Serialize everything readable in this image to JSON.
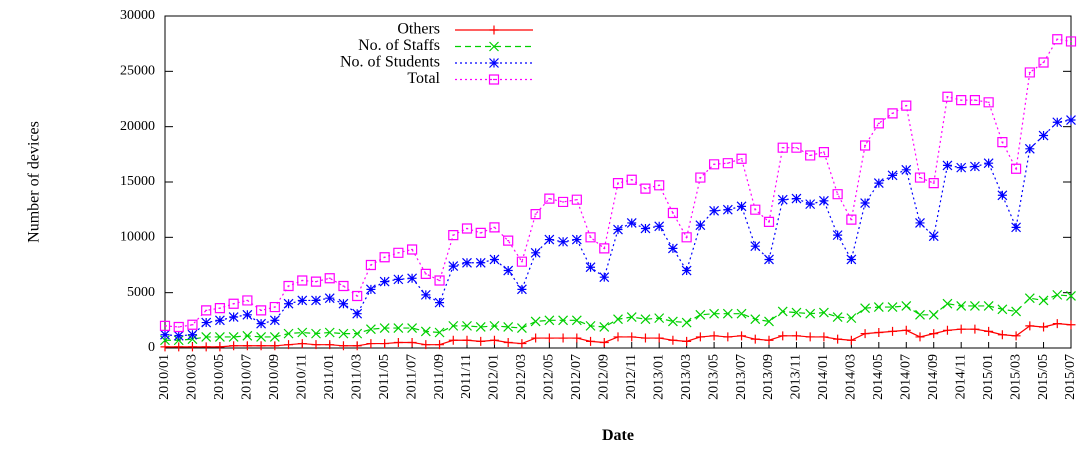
{
  "chart_data": {
    "type": "line",
    "x_label": "Date",
    "y_label": "Number of devices",
    "categories": [
      "2010/01",
      null,
      "2010/03",
      null,
      "2010/05",
      null,
      "2010/07",
      null,
      "2010/09",
      null,
      "2010/11",
      null,
      "2011/01",
      null,
      "2011/03",
      null,
      "2011/05",
      null,
      "2011/07",
      null,
      "2011/09",
      null,
      "2011/11",
      null,
      "2012/01",
      null,
      "2012/03",
      null,
      "2012/05",
      null,
      "2012/07",
      null,
      "2012/09",
      null,
      "2012/11",
      null,
      "2013/01",
      null,
      "2013/03",
      null,
      "2013/05",
      null,
      "2013/07",
      null,
      "2013/09",
      null,
      "2013/11",
      null,
      "2014/01",
      null,
      "2014/03",
      null,
      "2014/05",
      null,
      "2014/07",
      null,
      "2014/09",
      null,
      "2014/11",
      null,
      "2015/01",
      null,
      "2015/03",
      null,
      "2015/05",
      null,
      "2015/07"
    ],
    "ylim": [
      0,
      30000
    ],
    "yticks": [
      0,
      5000,
      10000,
      15000,
      20000,
      25000,
      30000
    ],
    "legend": "top-left",
    "series": [
      {
        "name": "Others",
        "color": "#ff0000",
        "line_style": "solid",
        "marker": "plus",
        "values": [
          100,
          100,
          100,
          100,
          100,
          200,
          200,
          200,
          200,
          300,
          400,
          300,
          300,
          200,
          200,
          400,
          400,
          500,
          500,
          300,
          300,
          700,
          700,
          600,
          700,
          500,
          400,
          900,
          900,
          900,
          900,
          600,
          500,
          1000,
          1000,
          900,
          900,
          700,
          600,
          1000,
          1100,
          1000,
          1100,
          800,
          700,
          1100,
          1100,
          1000,
          1000,
          800,
          700,
          1300,
          1400,
          1500,
          1600,
          1000,
          1300,
          1600,
          1700,
          1700,
          1500,
          1200,
          1100,
          2000,
          1900,
          2200,
          2100
        ]
      },
      {
        "name": "No. of Staffs",
        "color": "#00d000",
        "line_style": "dashed",
        "marker": "cross",
        "values": [
          700,
          700,
          800,
          1000,
          1000,
          1000,
          1100,
          1000,
          1000,
          1300,
          1400,
          1300,
          1400,
          1300,
          1300,
          1700,
          1800,
          1800,
          1800,
          1500,
          1400,
          2000,
          2000,
          1900,
          2000,
          1900,
          1800,
          2400,
          2500,
          2500,
          2500,
          2000,
          1900,
          2600,
          2800,
          2600,
          2700,
          2400,
          2300,
          3000,
          3100,
          3100,
          3100,
          2600,
          2400,
          3300,
          3200,
          3100,
          3200,
          2800,
          2700,
          3600,
          3700,
          3700,
          3800,
          3000,
          3000,
          4000,
          3800,
          3800,
          3800,
          3500,
          3300,
          4500,
          4300,
          4800,
          4700
        ]
      },
      {
        "name": "No. of Students",
        "color": "#0000ff",
        "line_style": "dotted",
        "marker": "star",
        "values": [
          1200,
          1100,
          1200,
          2300,
          2500,
          2800,
          3000,
          2200,
          2500,
          4000,
          4300,
          4300,
          4500,
          4000,
          3100,
          5300,
          6000,
          6200,
          6300,
          4800,
          4100,
          7400,
          7700,
          7700,
          8000,
          7000,
          5300,
          8600,
          9800,
          9600,
          9800,
          7300,
          6400,
          10700,
          11300,
          10800,
          11000,
          9000,
          7000,
          11100,
          12400,
          12500,
          12800,
          9200,
          8000,
          13400,
          13500,
          13000,
          13300,
          10200,
          8000,
          13100,
          14900,
          15600,
          16100,
          11300,
          10100,
          16500,
          16300,
          16400,
          16700,
          13800,
          10900,
          18000,
          19200,
          20400,
          20600
        ]
      },
      {
        "name": "Total",
        "color": "#ff00ff",
        "line_style": "dotted",
        "marker": "box",
        "values": [
          2000,
          1900,
          2100,
          3400,
          3600,
          4000,
          4300,
          3400,
          3700,
          5600,
          6100,
          6000,
          6300,
          5600,
          4700,
          7500,
          8200,
          8600,
          8900,
          6700,
          6100,
          10200,
          10800,
          10400,
          10900,
          9700,
          7800,
          12100,
          13500,
          13200,
          13400,
          10000,
          9000,
          14900,
          15200,
          14400,
          14700,
          12200,
          10000,
          15400,
          16600,
          16700,
          17100,
          12500,
          11400,
          18100,
          18100,
          17400,
          17700,
          13900,
          11600,
          18300,
          20300,
          21200,
          21900,
          15400,
          14900,
          22700,
          22400,
          22400,
          22200,
          18600,
          16200,
          24900,
          25800,
          27900,
          27700
        ]
      }
    ]
  }
}
